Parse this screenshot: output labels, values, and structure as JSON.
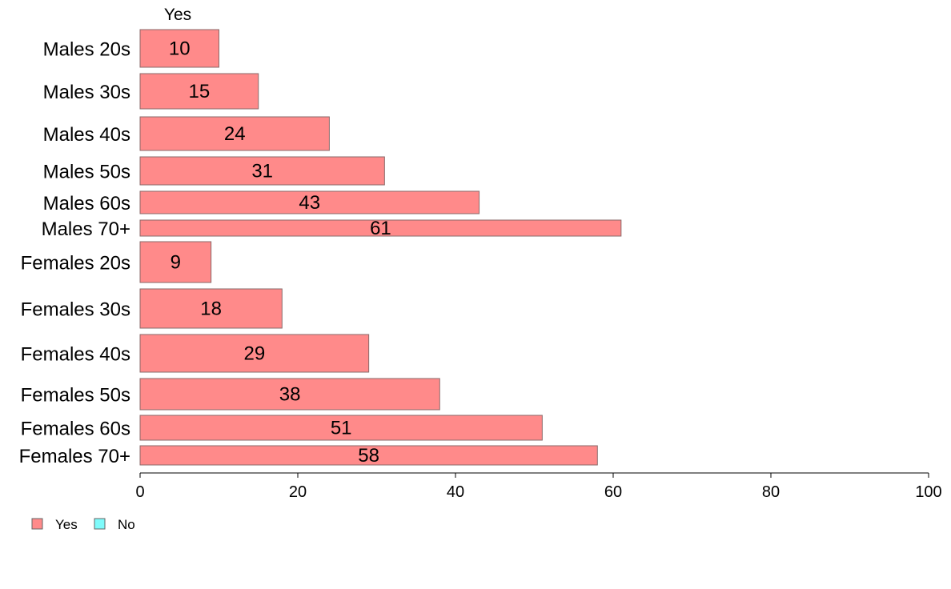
{
  "chart_data": {
    "type": "bar",
    "orientation": "horizontal",
    "column_header": "Yes",
    "categories": [
      "Males 20s",
      "Males 30s",
      "Males 40s",
      "Males 50s",
      "Males 60s",
      "Males 70+",
      "Females 20s",
      "Females 30s",
      "Females 40s",
      "Females 50s",
      "Females 60s",
      "Females 70+"
    ],
    "series": [
      {
        "name": "Yes",
        "color": "#ff8a8a",
        "values": [
          10,
          15,
          24,
          31,
          43,
          61,
          9,
          18,
          29,
          38,
          51,
          58
        ],
        "labels": [
          "10",
          "15",
          "24",
          "31",
          "43",
          "61",
          "9",
          "18",
          "29",
          "38",
          "51",
          "58"
        ]
      }
    ],
    "legend": {
      "position": "bottom-left",
      "entries": [
        {
          "name": "Yes",
          "color": "#ff8a8a"
        },
        {
          "name": "No",
          "color": "#7ffbfb"
        }
      ]
    },
    "xlim": [
      0,
      100
    ],
    "xticks": [
      "0",
      "20",
      "40",
      "60",
      "80",
      "100"
    ],
    "grid": false,
    "title": "",
    "xlabel": "",
    "ylabel": ""
  }
}
